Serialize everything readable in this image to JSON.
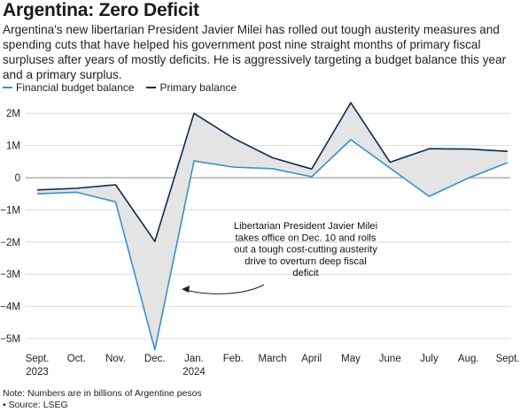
{
  "title": "Argentina: Zero Deficit",
  "subtitle": "Argentina's new libertarian President Javier Milei has rolled out tough austerity measures and spending cuts that have helped his government post nine straight months of primary fiscal surpluses after years of mostly deficits. He is aggressively targeting a budget balance this year and a primary surplus.",
  "note": "Note: Numbers are in billions of Argentine pesos",
  "source": "• Source: LSEG",
  "annotation": [
    "Libertarian President Javier Milei",
    "takes office on Dec. 10 and rolls",
    "out a tough cost-cutting austerity",
    "drive to overturn deep fiscal",
    "deficit"
  ],
  "chart_data": {
    "type": "line",
    "categories": [
      [
        "Sept.",
        "2023"
      ],
      [
        "Oct."
      ],
      [
        "Nov."
      ],
      [
        "Dec."
      ],
      [
        "Jan.",
        "2024"
      ],
      [
        "Feb."
      ],
      [
        "March"
      ],
      [
        "April"
      ],
      [
        "May"
      ],
      [
        "June"
      ],
      [
        "July"
      ],
      [
        "Aug."
      ],
      [
        "Sept."
      ]
    ],
    "y_ticks": [
      {
        "v": 2000000,
        "label": "2M"
      },
      {
        "v": 1000000,
        "label": "1M"
      },
      {
        "v": 0,
        "label": "0"
      },
      {
        "v": -1000000,
        "label": "−1M"
      },
      {
        "v": -2000000,
        "label": "−2M"
      },
      {
        "v": -3000000,
        "label": "−3M"
      },
      {
        "v": -4000000,
        "label": "−4M"
      },
      {
        "v": -5000000,
        "label": "−5M"
      }
    ],
    "ylim": [
      -5300000,
      2400000
    ],
    "series": [
      {
        "name": "Financial budget balance",
        "color": "#3a8fd0",
        "values": [
          -500000,
          -450000,
          -750000,
          -5350000,
          520000,
          330000,
          280000,
          30000,
          1180000,
          300000,
          -580000,
          -10000,
          470000
        ]
      },
      {
        "name": "Primary balance",
        "color": "#0d2b52",
        "values": [
          -380000,
          -330000,
          -220000,
          -1980000,
          2000000,
          1230000,
          620000,
          270000,
          2330000,
          480000,
          900000,
          890000,
          820000
        ]
      }
    ],
    "fill_color": "#e4e4e4",
    "grid": true
  }
}
